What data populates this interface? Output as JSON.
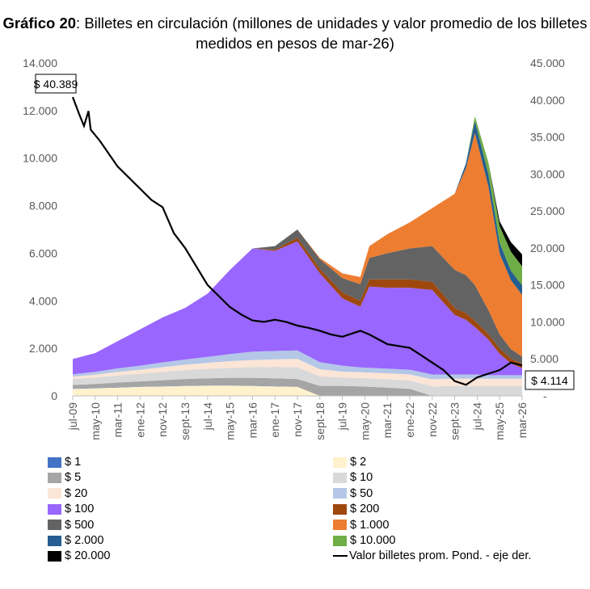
{
  "chart_data": {
    "type": "area",
    "title_bold": "Gráfico 20",
    "title_rest": ": Billetes en circulación (millones de unidades y valor promedio de los billetes medidos en pesos de mar-26)",
    "y_left": {
      "min": 0,
      "max": 14000,
      "ticks": [
        "0",
        "2.000",
        "4.000",
        "6.000",
        "8.000",
        "10.000",
        "12.000",
        "14.000"
      ]
    },
    "y_right": {
      "min": 0,
      "max": 45000,
      "ticks": [
        "-",
        "5.000",
        "10.000",
        "15.000",
        "20.000",
        "25.000",
        "30.000",
        "35.000",
        "40.000",
        "45.000"
      ]
    },
    "x_ticks": [
      "jul-09",
      "may-10",
      "mar-11",
      "ene-12",
      "nov-12",
      "sept-13",
      "jul-14",
      "may-15",
      "mar-16",
      "ene-17",
      "nov-17",
      "sept-18",
      "jul-19",
      "may-20",
      "mar-21",
      "ene-22",
      "nov-22",
      "sept-23",
      "jul-24",
      "may-25",
      "mar-26"
    ],
    "x_range": [
      "2009-07",
      "2026-03"
    ],
    "x": [
      "2009-07",
      "2010-05",
      "2011-03",
      "2012-01",
      "2012-11",
      "2013-09",
      "2014-07",
      "2015-05",
      "2016-03",
      "2017-01",
      "2017-11",
      "2018-09",
      "2019-07",
      "2020-03",
      "2020-07",
      "2021-03",
      "2022-01",
      "2022-11",
      "2023-09",
      "2024-02",
      "2024-06",
      "2024-12",
      "2025-05",
      "2025-10",
      "2026-03"
    ],
    "series": [
      {
        "name": "$ 2",
        "color": "#FFF2CC",
        "values": [
          300,
          320,
          350,
          380,
          400,
          420,
          430,
          430,
          420,
          400,
          380,
          0,
          0,
          0,
          0,
          0,
          0,
          0,
          0,
          0,
          0,
          0,
          0,
          0,
          0
        ]
      },
      {
        "name": "$ 1",
        "color": "#4472C4",
        "values": [
          10,
          10,
          10,
          10,
          10,
          10,
          10,
          10,
          10,
          10,
          0,
          0,
          0,
          0,
          0,
          0,
          0,
          0,
          0,
          0,
          0,
          0,
          0,
          0,
          0
        ]
      },
      {
        "name": "$ 5",
        "color": "#A5A5A5",
        "values": [
          150,
          170,
          200,
          220,
          250,
          280,
          300,
          320,
          330,
          330,
          330,
          420,
          420,
          400,
          380,
          350,
          300,
          0,
          0,
          0,
          0,
          0,
          0,
          0,
          0
        ]
      },
      {
        "name": "$ 10",
        "color": "#D9D9D9",
        "values": [
          250,
          270,
          300,
          320,
          350,
          380,
          400,
          420,
          450,
          480,
          500,
          400,
          350,
          350,
          350,
          350,
          350,
          400,
          420,
          420,
          420,
          420,
          420,
          420,
          420
        ]
      },
      {
        "name": "$ 20",
        "color": "#FBE5D6",
        "values": [
          100,
          120,
          150,
          170,
          200,
          220,
          250,
          280,
          300,
          320,
          350,
          300,
          250,
          250,
          250,
          250,
          250,
          300,
          300,
          300,
          300,
          300,
          300,
          300,
          300
        ]
      },
      {
        "name": "$ 50",
        "color": "#B4C7E7",
        "values": [
          100,
          120,
          150,
          170,
          200,
          220,
          250,
          300,
          350,
          350,
          350,
          300,
          250,
          200,
          200,
          200,
          200,
          200,
          180,
          180,
          180,
          150,
          150,
          150,
          150
        ]
      },
      {
        "name": "$ 100",
        "color": "#9966FF",
        "values": [
          640,
          790,
          1140,
          1530,
          1890,
          2170,
          2660,
          3540,
          4340,
          4210,
          4590,
          3730,
          2830,
          2550,
          3420,
          3400,
          3450,
          3550,
          2500,
          2300,
          2000,
          1500,
          900,
          500,
          300
        ]
      },
      {
        "name": "$ 200",
        "color": "#9E480E",
        "values": [
          0,
          0,
          0,
          0,
          0,
          0,
          0,
          0,
          0,
          50,
          150,
          200,
          250,
          250,
          300,
          350,
          350,
          350,
          300,
          280,
          260,
          240,
          220,
          200,
          180
        ]
      },
      {
        "name": "$ 500",
        "color": "#636363",
        "values": [
          0,
          0,
          0,
          0,
          0,
          0,
          0,
          0,
          0,
          150,
          350,
          400,
          600,
          700,
          900,
          1100,
          1300,
          1500,
          1600,
          1600,
          1500,
          1000,
          600,
          400,
          300
        ]
      },
      {
        "name": "$ 1.000",
        "color": "#ED7D31",
        "values": [
          0,
          0,
          0,
          0,
          0,
          0,
          0,
          0,
          0,
          0,
          0,
          50,
          200,
          300,
          500,
          800,
          1100,
          1600,
          3200,
          4500,
          6400,
          5200,
          3400,
          2900,
          2600
        ]
      },
      {
        "name": "$ 2.000",
        "color": "#255E91",
        "values": [
          0,
          0,
          0,
          0,
          0,
          0,
          0,
          0,
          0,
          0,
          0,
          0,
          0,
          0,
          0,
          0,
          0,
          0,
          0,
          200,
          500,
          500,
          450,
          400,
          400
        ]
      },
      {
        "name": "$ 10.000",
        "color": "#70AD47",
        "values": [
          0,
          0,
          0,
          0,
          0,
          0,
          0,
          0,
          0,
          0,
          0,
          0,
          0,
          0,
          0,
          0,
          0,
          0,
          0,
          0,
          200,
          500,
          700,
          800,
          800
        ]
      },
      {
        "name": "$ 20.000",
        "color": "#000000",
        "values": [
          0,
          0,
          0,
          0,
          0,
          0,
          0,
          0,
          0,
          0,
          0,
          0,
          0,
          0,
          0,
          0,
          0,
          0,
          0,
          0,
          0,
          0,
          200,
          400,
          500
        ]
      }
    ],
    "line": {
      "name": "Valor billetes prom. Pond. - eje der.",
      "axis": "right",
      "color": "#000000",
      "x": [
        "2009-07",
        "2009-10",
        "2009-12",
        "2010-02",
        "2010-03",
        "2010-07",
        "2011-03",
        "2012-01",
        "2012-06",
        "2012-11",
        "2013-04",
        "2013-09",
        "2014-02",
        "2014-07",
        "2014-12",
        "2015-05",
        "2015-10",
        "2016-03",
        "2016-08",
        "2017-01",
        "2017-06",
        "2017-11",
        "2018-04",
        "2018-09",
        "2019-02",
        "2019-07",
        "2019-12",
        "2020-03",
        "2020-07",
        "2021-03",
        "2022-01",
        "2022-06",
        "2022-11",
        "2023-04",
        "2023-09",
        "2024-02",
        "2024-07",
        "2024-12",
        "2025-05",
        "2025-10",
        "2026-03"
      ],
      "values": [
        40389,
        38000,
        36500,
        38500,
        36000,
        34500,
        31000,
        28000,
        26500,
        25500,
        22000,
        20000,
        17500,
        15000,
        13500,
        12000,
        11000,
        10200,
        10000,
        10300,
        10000,
        9500,
        9200,
        8800,
        8300,
        8000,
        8500,
        8800,
        8300,
        7000,
        6500,
        5500,
        4500,
        3500,
        2000,
        1500,
        2500,
        3000,
        3500,
        4500,
        4114
      ]
    },
    "annotations": [
      "$ 40.389",
      "$ 4.114"
    ],
    "legend": {
      "placement": "bottom",
      "columns": 2,
      "items": [
        "$ 1",
        "$ 2",
        "$ 5",
        "$ 10",
        "$ 20",
        "$ 50",
        "$ 100",
        "$ 200",
        "$ 500",
        "$ 1.000",
        "$ 2.000",
        "$ 10.000",
        "$ 20.000",
        "Valor billetes prom. Pond. - eje der."
      ],
      "colors": [
        "#4472C4",
        "#FFF2CC",
        "#A5A5A5",
        "#D9D9D9",
        "#FBE5D6",
        "#B4C7E7",
        "#9966FF",
        "#9E480E",
        "#636363",
        "#ED7D31",
        "#255E91",
        "#70AD47",
        "#000000",
        "line"
      ]
    }
  }
}
